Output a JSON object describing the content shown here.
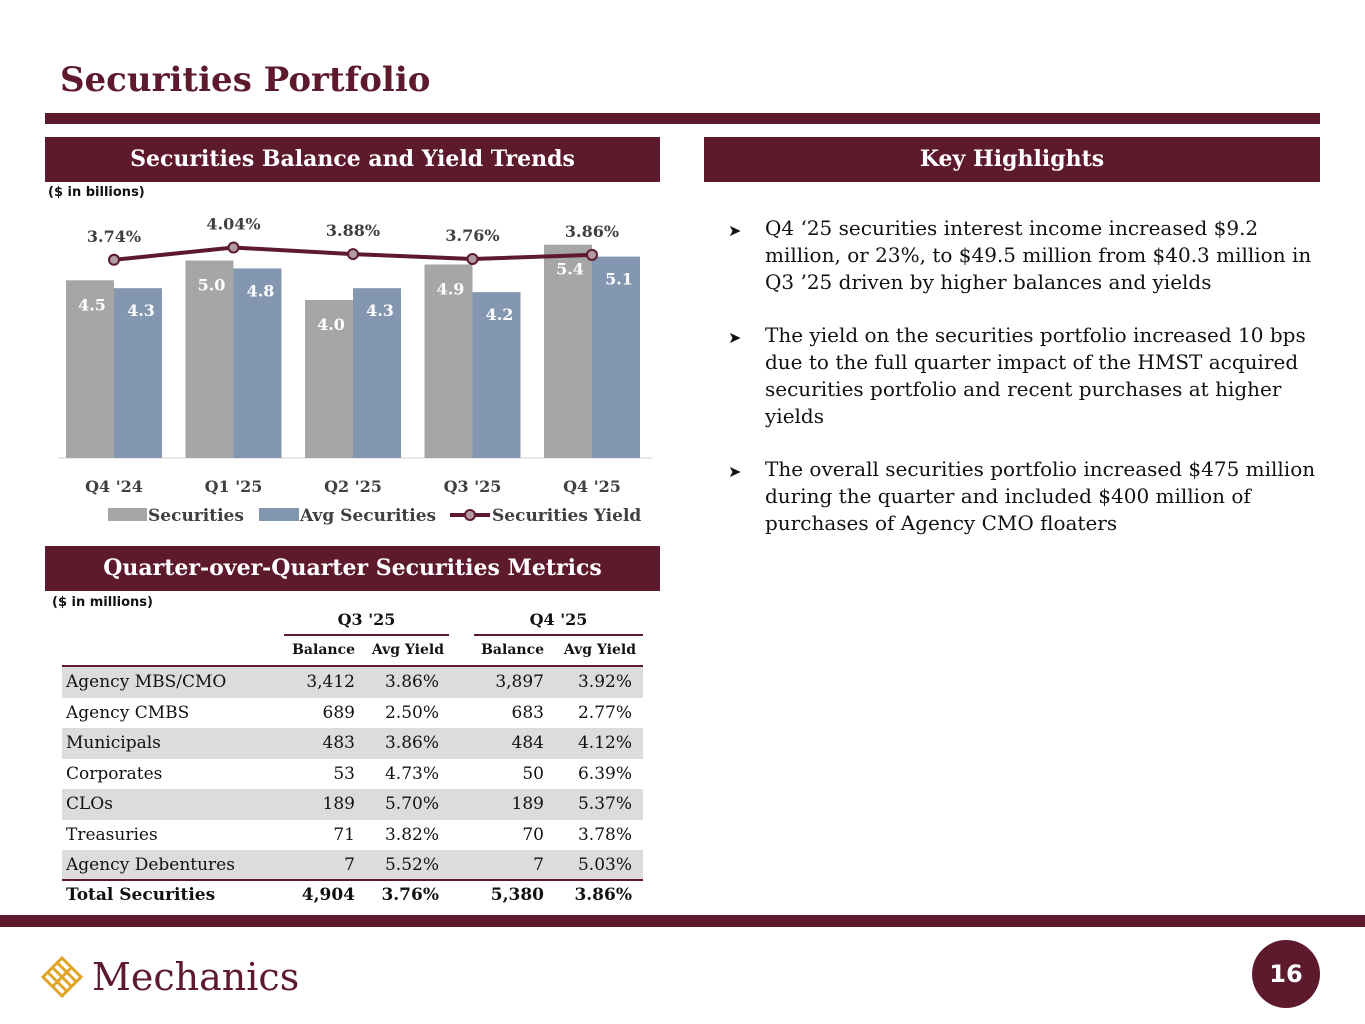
{
  "page_title": "Securities Portfolio",
  "left_top": {
    "header": "Securities Balance and Yield Trends",
    "unit": "($ in billions)"
  },
  "right_top": {
    "header": "Key Highlights",
    "bullets": [
      "Q4 ‘25 securities interest income increased $9.2 million, or 23%, to $49.5 million from $40.3 million in Q3 ’25 driven by higher balances and yields",
      "The yield on the securities portfolio increased 10 bps due to the full quarter impact of the HMST acquired securities portfolio and recent purchases at higher yields",
      "The overall securities portfolio increased $475 million during the quarter and included $400 million of purchases of Agency CMO floaters"
    ]
  },
  "chart_data": {
    "type": "bar",
    "title": "Securities Balance and Yield Trends",
    "ylabel": "($ in billions)",
    "categories": [
      "Q4 '24",
      "Q1 '25",
      "Q2 '25",
      "Q3 '25",
      "Q4 '25"
    ],
    "ylim": [
      0,
      5.9
    ],
    "series": [
      {
        "name": "Securities",
        "type": "bar",
        "color": "#a6a6a6",
        "values": [
          4.5,
          5.0,
          4.0,
          4.9,
          5.4
        ],
        "labels": [
          "4.5",
          "5.0",
          "4.0",
          "4.9",
          "5.4"
        ]
      },
      {
        "name": "Avg Securities",
        "type": "bar",
        "color": "#8497b0",
        "values": [
          4.3,
          4.8,
          4.3,
          4.2,
          5.1
        ],
        "labels": [
          "4.3",
          "4.8",
          "4.3",
          "4.2",
          "5.1"
        ]
      },
      {
        "name": "Securities Yield",
        "type": "line",
        "color": "#5e1a2d",
        "values": [
          3.74,
          4.04,
          3.88,
          3.76,
          3.86
        ],
        "labels": [
          "3.74%",
          "4.04%",
          "3.88%",
          "3.76%",
          "3.86%"
        ]
      }
    ],
    "legend": [
      "Securities",
      "Avg Securities",
      "Securities Yield"
    ]
  },
  "metrics": {
    "header": "Quarter-over-Quarter Securities Metrics",
    "unit": "($ in millions)",
    "periods": [
      "Q3 '25",
      "Q4 '25"
    ],
    "col_headers": [
      "Balance",
      "Avg Yield",
      "Balance",
      "Avg Yield"
    ],
    "rows": [
      {
        "name": "Agency MBS/CMO",
        "q3_balance": "3,412",
        "q3_yield": "3.86%",
        "q4_balance": "3,897",
        "q4_yield": "3.92%"
      },
      {
        "name": "Agency CMBS",
        "q3_balance": "689",
        "q3_yield": "2.50%",
        "q4_balance": "683",
        "q4_yield": "2.77%"
      },
      {
        "name": "Municipals",
        "q3_balance": "483",
        "q3_yield": "3.86%",
        "q4_balance": "484",
        "q4_yield": "4.12%"
      },
      {
        "name": "Corporates",
        "q3_balance": "53",
        "q3_yield": "4.73%",
        "q4_balance": "50",
        "q4_yield": "6.39%"
      },
      {
        "name": "CLOs",
        "q3_balance": "189",
        "q3_yield": "5.70%",
        "q4_balance": "189",
        "q4_yield": "5.37%"
      },
      {
        "name": "Treasuries",
        "q3_balance": "71",
        "q3_yield": "3.82%",
        "q4_balance": "70",
        "q4_yield": "3.78%"
      },
      {
        "name": "Agency Debentures",
        "q3_balance": "7",
        "q3_yield": "5.52%",
        "q4_balance": "7",
        "q4_yield": "5.03%"
      }
    ],
    "total": {
      "name": "Total Securities",
      "q3_balance": "4,904",
      "q3_yield": "3.76%",
      "q4_balance": "5,380",
      "q4_yield": "3.86%"
    }
  },
  "footer": {
    "logo_text": "Mechanics",
    "logo_icon": "diamond-lattice-icon",
    "page_number": "16"
  },
  "colors": {
    "brand": "#5e1a2d",
    "bar_gray": "#a6a6a6",
    "bar_blue": "#8497b0",
    "row_shade": "#dcdcdc"
  }
}
